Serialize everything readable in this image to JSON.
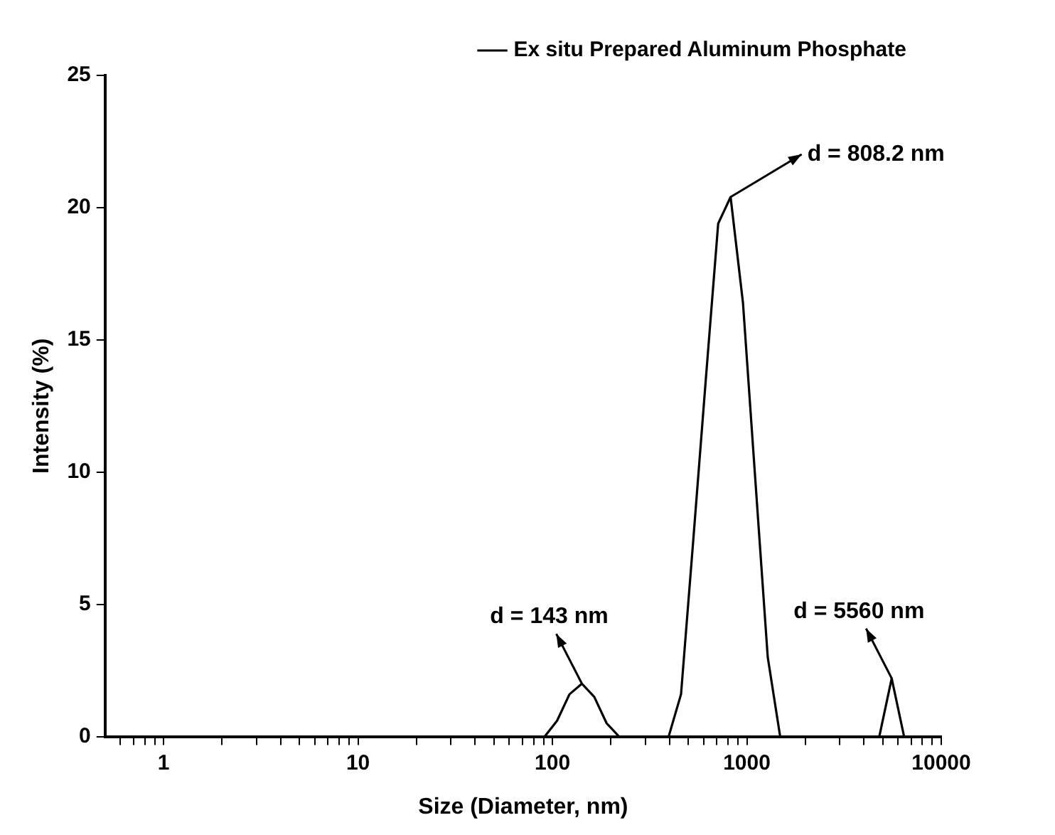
{
  "chart_data": {
    "type": "line",
    "xlabel": "Size (Diameter, nm)",
    "ylabel": "Intensity (%)",
    "log": "x",
    "grid": false,
    "legend": "top right",
    "marker": "none",
    "line_style": "solid",
    "xlim": [
      0.5,
      10000
    ],
    "ylim": [
      0,
      25
    ],
    "yticks": [
      0,
      5,
      10,
      15,
      20,
      25
    ],
    "xticks": [
      {
        "value": 0.6,
        "label": null
      },
      {
        "value": 0.7,
        "label": null
      },
      {
        "value": 0.8,
        "label": null
      },
      {
        "value": 0.9,
        "label": null
      },
      1,
      {
        "value": 2,
        "label": null
      },
      {
        "value": 3,
        "label": null
      },
      {
        "value": 4,
        "label": null
      },
      {
        "value": 5,
        "label": null
      },
      {
        "value": 6,
        "label": null
      },
      {
        "value": 7,
        "label": null
      },
      {
        "value": 8,
        "label": null
      },
      {
        "value": 9,
        "label": null
      },
      10,
      {
        "value": 20,
        "label": null
      },
      {
        "value": 30,
        "label": null
      },
      {
        "value": 40,
        "label": null
      },
      {
        "value": 50,
        "label": null
      },
      {
        "value": 60,
        "label": null
      },
      {
        "value": 70,
        "label": null
      },
      {
        "value": 80,
        "label": null
      },
      {
        "value": 90,
        "label": null
      },
      100,
      {
        "value": 200,
        "label": null
      },
      {
        "value": 300,
        "label": null
      },
      {
        "value": 400,
        "label": null
      },
      {
        "value": 500,
        "label": null
      },
      {
        "value": 600,
        "label": null
      },
      {
        "value": 700,
        "label": null
      },
      {
        "value": 800,
        "label": null
      },
      {
        "value": 900,
        "label": null
      },
      1000,
      {
        "value": 2000,
        "label": null
      },
      {
        "value": 3000,
        "label": null
      },
      {
        "value": 4000,
        "label": null
      },
      {
        "value": 5000,
        "label": null
      },
      {
        "value": 6000,
        "label": null
      },
      {
        "value": 7000,
        "label": null
      },
      {
        "value": 8000,
        "label": null
      },
      {
        "value": 9000,
        "label": null
      },
      10000
    ],
    "series": [
      {
        "name": "Ex situ Prepared Aluminum Phosphate",
        "color": "#000000",
        "x": [
          0.5365,
          91.28,
          105.7,
          122.4,
          141.8,
          164.2,
          190.1,
          220.2,
          396.1,
          458.7,
          531.2,
          615.1,
          712.4,
          825.0,
          955.4,
          1106,
          1281,
          1484,
          4801,
          5560,
          6439,
          10000
        ],
        "values": [
          0,
          0,
          0.6,
          1.6,
          2.0,
          1.5,
          0.5,
          0,
          0,
          1.6,
          7.5,
          13.5,
          19.4,
          20.4,
          16.4,
          9.7,
          3.0,
          0,
          0,
          2.2,
          0,
          0
        ]
      }
    ],
    "annotations": [
      {
        "text": "d = 808.2 nm",
        "x": 825.0,
        "y": 20.4
      },
      {
        "text": "d = 143 nm",
        "x": 141.8,
        "y": 2.0
      },
      {
        "text": "d = 5560 nm",
        "x": 5560,
        "y": 2.2
      }
    ]
  }
}
